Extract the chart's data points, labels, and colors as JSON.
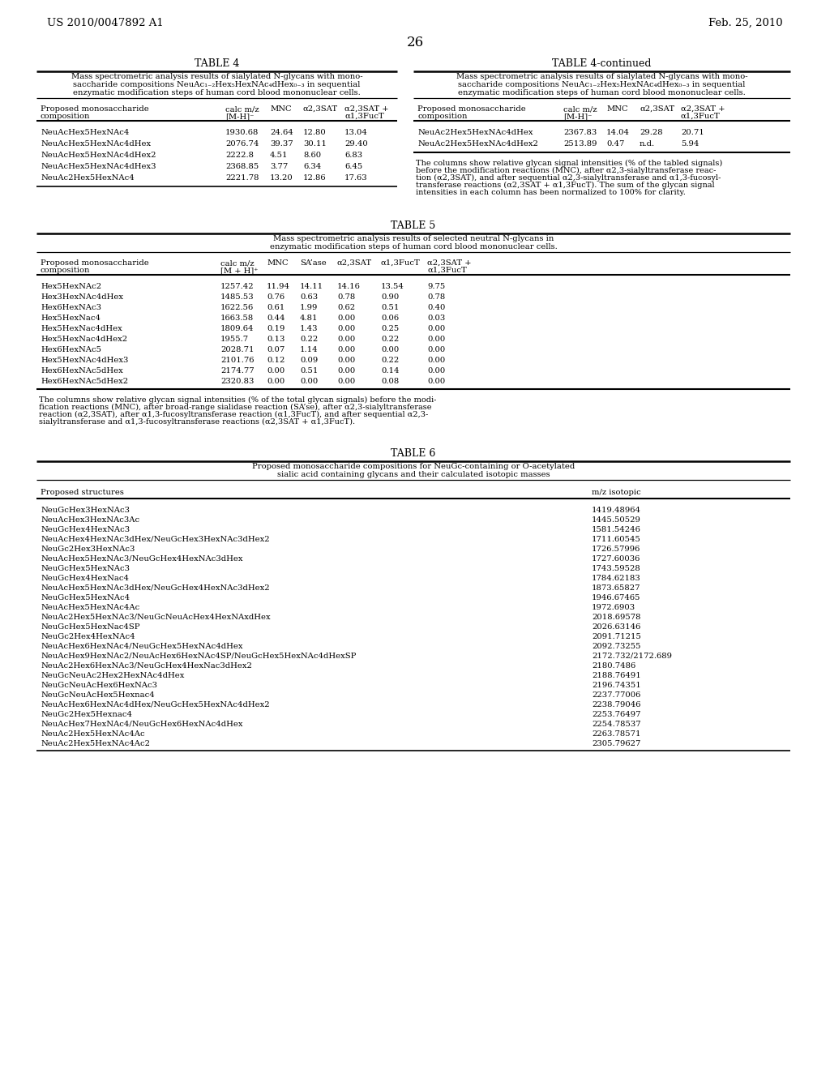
{
  "header_left": "US 2010/0047892 A1",
  "header_right": "Feb. 25, 2010",
  "page_number": "26",
  "bg_color": "#ffffff",
  "text_color": "#000000",
  "table4_title": "TABLE 4",
  "table4_caption_lines": [
    "Mass spectrometric analysis results of sialylated N-glycans with mono-",
    "saccharide compositions NeuAc₁₋₂Hex₅HexNAc₄dHex₀₋₃ in sequential",
    "enzymatic modification steps of human cord blood mononuclear cells."
  ],
  "table4_col_headers": [
    "Proposed monosaccharide\ncomposition",
    "calc m/z\n[M-H]⁻",
    "MNC",
    "α2,3SAT",
    "α2,3SAT +\nα1,3FucT"
  ],
  "table4_rows": [
    [
      "NeuAcHex5HexNAc4",
      "1930.68",
      "24.64",
      "12.80",
      "13.04"
    ],
    [
      "NeuAcHex5HexNAc4dHex",
      "2076.74",
      "39.37",
      "30.11",
      "29.40"
    ],
    [
      "NeuAcHex5HexNAc4dHex2",
      "2222.8",
      "4.51",
      "8.60",
      "6.83"
    ],
    [
      "NeuAcHex5HexNAc4dHex3",
      "2368.85",
      "3.77",
      "6.34",
      "6.45"
    ],
    [
      "NeuAc2Hex5HexNAc4",
      "2221.78",
      "13.20",
      "12.86",
      "17.63"
    ]
  ],
  "table4c_title": "TABLE 4-continued",
  "table4c_caption_lines": [
    "Mass spectrometric analysis results of sialylated N-glycans with mono-",
    "saccharide compositions NeuAc₁₋₂Hex₅HexNAc₄dHex₀₋₃ in sequential",
    "enzymatic modification steps of human cord blood mononuclear cells."
  ],
  "table4c_col_headers": [
    "Proposed monosaccharide\ncomposition",
    "calc m/z\n[M-H]⁻",
    "MNC",
    "α2,3SAT",
    "α2,3SAT +\nα1,3FucT"
  ],
  "table4c_rows": [
    [
      "NeuAc2Hex5HexNAc4dHex",
      "2367.83",
      "14.04",
      "29.28",
      "20.71"
    ],
    [
      "NeuAc2Hex5HexNAc4dHex2",
      "2513.89",
      "0.47",
      "n.d.",
      "5.94"
    ]
  ],
  "table4c_footnote_lines": [
    "The columns show relative glycan signal intensities (% of the tabled signals)",
    "before the modification reactions (MNC), after α2,3-sialyltransferase reac-",
    "tion (α2,3SAT), and after sequential α2,3-sialyltransferase and α1,3-fucosyl-",
    "transferase reactions (α2,3SAT + α1,3FucT). The sum of the glycan signal",
    "intensities in each column has been normalized to 100% for clarity."
  ],
  "table5_title": "TABLE 5",
  "table5_caption_lines": [
    "Mass spectrometric analysis results of selected neutral N-glycans in",
    "enzymatic modification steps of human cord blood mononuclear cells."
  ],
  "table5_col_headers": [
    "Proposed monosaccharide\ncomposition",
    "calc m/z\n[M + H]⁺",
    "MNC",
    "SA’ase",
    "α2,3SAT",
    "α1,3FucT",
    "α2,3SAT +\nα1,3FucT"
  ],
  "table5_rows": [
    [
      "Hex5HexNAc2",
      "1257.42",
      "11.94",
      "14.11",
      "14.16",
      "13.54",
      "9.75"
    ],
    [
      "Hex3HexNAc4dHex",
      "1485.53",
      "0.76",
      "0.63",
      "0.78",
      "0.90",
      "0.78"
    ],
    [
      "Hex6HexNAc3",
      "1622.56",
      "0.61",
      "1.99",
      "0.62",
      "0.51",
      "0.40"
    ],
    [
      "Hex5HexNac4",
      "1663.58",
      "0.44",
      "4.81",
      "0.00",
      "0.06",
      "0.03"
    ],
    [
      "Hex5HexNac4dHex",
      "1809.64",
      "0.19",
      "1.43",
      "0.00",
      "0.25",
      "0.00"
    ],
    [
      "Hex5HexNac4dHex2",
      "1955.7",
      "0.13",
      "0.22",
      "0.00",
      "0.22",
      "0.00"
    ],
    [
      "Hex6HexNAc5",
      "2028.71",
      "0.07",
      "1.14",
      "0.00",
      "0.00",
      "0.00"
    ],
    [
      "Hex5HexNAc4dHex3",
      "2101.76",
      "0.12",
      "0.09",
      "0.00",
      "0.22",
      "0.00"
    ],
    [
      "Hex6HexNAc5dHex",
      "2174.77",
      "0.00",
      "0.51",
      "0.00",
      "0.14",
      "0.00"
    ],
    [
      "Hex6HexNAc5dHex2",
      "2320.83",
      "0.00",
      "0.00",
      "0.00",
      "0.08",
      "0.00"
    ]
  ],
  "table5_footnote_lines": [
    "The columns show relative glycan signal intensities (% of the total glycan signals) before the modi-",
    "fication reactions (MNC), after broad-range sialidase reaction (SA’se), after α2,3-sialyltransferase",
    "reaction (α2,3SAT), after α1,3-fucosyltransferase reaction (α1,3FucT), and after sequential α2,3-",
    "sialyltransferase and α1,3-fucosyltransferase reactions (α2,3SAT + α1,3FucT)."
  ],
  "table6_title": "TABLE 6",
  "table6_caption_lines": [
    "Proposed monosaccharide compositions for NeuGc-containing or O-acetylated",
    "sialic acid containing glycans and their calculated isotopic masses"
  ],
  "table6_col_headers": [
    "Proposed structures",
    "m/z isotopic"
  ],
  "table6_rows": [
    [
      "NeuGcHex3HexNAc3",
      "1419.48964"
    ],
    [
      "NeuAcHex3HexNAc3Ac",
      "1445.50529"
    ],
    [
      "NeuGcHex4HexNAc3",
      "1581.54246"
    ],
    [
      "NeuAcHex4HexNAc3dHex/NeuGcHex3HexNAc3dHex2",
      "1711.60545"
    ],
    [
      "NeuGc2Hex3HexNAc3",
      "1726.57996"
    ],
    [
      "NeuAcHex5HexNAc3/NeuGcHex4HexNAc3dHex",
      "1727.60036"
    ],
    [
      "NeuGcHex5HexNAc3",
      "1743.59528"
    ],
    [
      "NeuGcHex4HexNac4",
      "1784.62183"
    ],
    [
      "NeuAcHex5HexNAc3dHex/NeuGcHex4HexNAc3dHex2",
      "1873.65827"
    ],
    [
      "NeuGcHex5HexNAc4",
      "1946.67465"
    ],
    [
      "NeuAcHex5HexNAc4Ac",
      "1972.6903"
    ],
    [
      "NeuAc2Hex5HexNAc3/NeuGcNeuAcHex4HexNAxdHex",
      "2018.69578"
    ],
    [
      "NeuGcHex5HexNac4SP",
      "2026.63146"
    ],
    [
      "NeuGc2Hex4HexNAc4",
      "2091.71215"
    ],
    [
      "NeuAcHex6HexNAc4/NeuGcHex5HexNAc4dHex",
      "2092.73255"
    ],
    [
      "NeuAcHex9HexNAc2/NeuAcHex6HexNAc4SP/NeuGcHex5HexNAc4dHexSP",
      "2172.732/2172.689"
    ],
    [
      "NeuAc2Hex6HexNAc3/NeuGcHex4HexNac3dHex2",
      "2180.7486"
    ],
    [
      "NeuGcNeuAc2Hex2HexNAc4dHex",
      "2188.76491"
    ],
    [
      "NeuGcNeuAcHex6HexNAc3",
      "2196.74351"
    ],
    [
      "NeuGcNeuAcHex5Hexnac4",
      "2237.77006"
    ],
    [
      "NeuAcHex6HexNAc4dHex/NeuGcHex5HexNAc4dHex2",
      "2238.79046"
    ],
    [
      "NeuGc2Hex5Hexnac4",
      "2253.76497"
    ],
    [
      "NeuAcHex7HexNAc4/NeuGcHex6HexNAc4dHex",
      "2254.78537"
    ],
    [
      "NeuAc2Hex5HexNAc4Ac",
      "2263.78571"
    ],
    [
      "NeuAc2Hex5HexNAc4Ac2",
      "2305.79627"
    ]
  ]
}
